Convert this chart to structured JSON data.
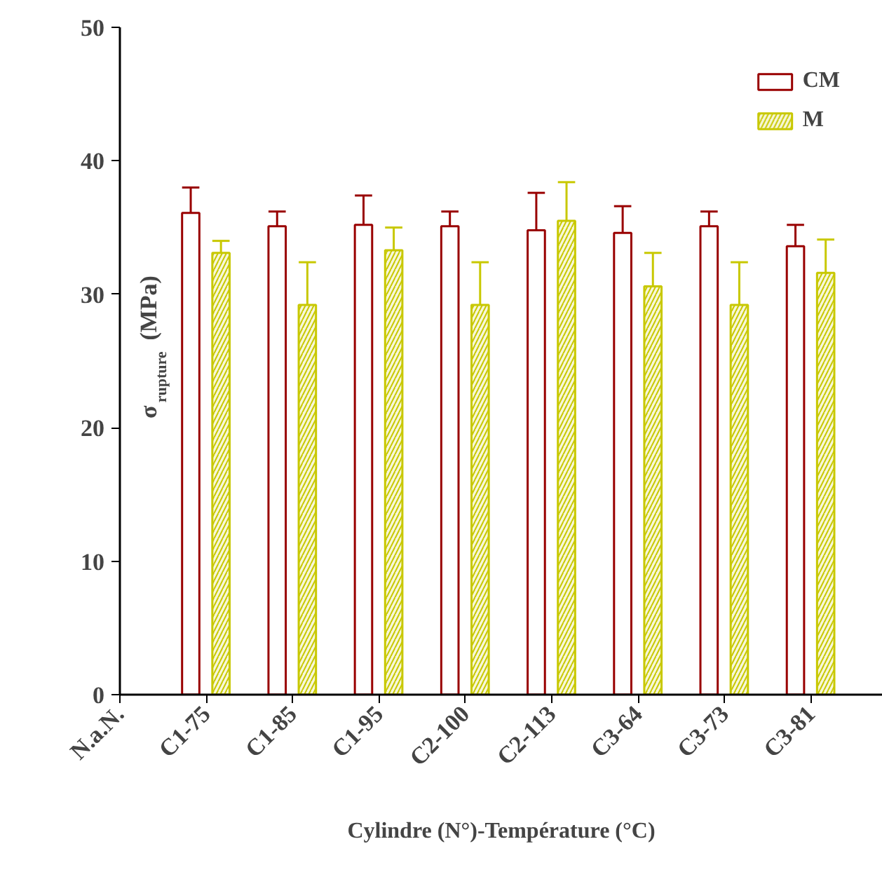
{
  "chart_data": {
    "type": "bar",
    "xlabel": "Cylindre (N°)-Température (°C)",
    "ylabel": "σ$_{rupture}$ (MPa)",
    "categories": [
      "N.a.N.",
      "C1-75",
      "C1-85",
      "C1-95",
      "C2-100",
      "C2-113",
      "C3-64",
      "C3-73",
      "C3-81"
    ],
    "series": [
      {
        "name": "CM",
        "color": "#990000",
        "values": [
          null,
          36.1,
          35.1,
          35.2,
          35.1,
          34.8,
          34.6,
          35.1,
          33.6
        ],
        "errors": [
          null,
          [
            36.1,
            38.0
          ],
          [
            35.1,
            36.2
          ],
          [
            35.2,
            37.4
          ],
          [
            35.1,
            36.2
          ],
          [
            34.8,
            37.6
          ],
          [
            34.6,
            36.6
          ],
          [
            35.1,
            36.2
          ],
          [
            33.6,
            35.2
          ]
        ]
      },
      {
        "name": "M",
        "color": "#c8c800",
        "values": [
          null,
          33.1,
          29.2,
          33.3,
          29.2,
          35.5,
          30.6,
          29.2,
          31.6
        ],
        "errors": [
          null,
          [
            33.1,
            34.0
          ],
          [
            29.2,
            32.4
          ],
          [
            33.3,
            35.0
          ],
          [
            29.2,
            32.4
          ],
          [
            35.5,
            38.4
          ],
          [
            30.6,
            33.1
          ],
          [
            29.2,
            32.4
          ],
          [
            31.6,
            34.1
          ]
        ]
      }
    ],
    "ylim": [
      0,
      50
    ],
    "yticks": [
      0,
      10,
      20,
      30,
      40,
      50
    ],
    "grid": false,
    "legend": "top right"
  }
}
